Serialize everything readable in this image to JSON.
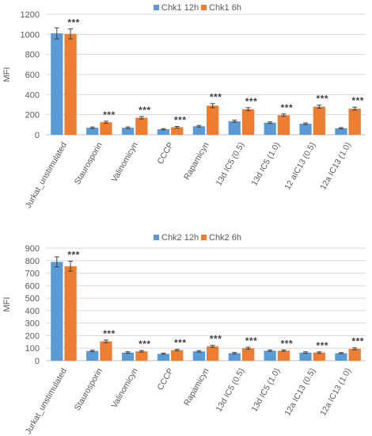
{
  "colors": {
    "series_12h": "#5b9bd5",
    "series_6h": "#ed7d31",
    "grid": "#d9d9d9",
    "axis": "#bfbfbf",
    "text": "#595959",
    "error_bar": "#404040"
  },
  "chart_data": [
    {
      "type": "bar",
      "title": "",
      "xlabel": "",
      "ylabel": "MFI",
      "ylim": [
        0,
        1200
      ],
      "yticks": [
        "0",
        "200",
        "400",
        "600",
        "800",
        "1000",
        "1200"
      ],
      "grid": true,
      "legend_position": "top",
      "categories": [
        "Jurkat_unstimulated",
        "Staurosporin",
        "Valinomicyn",
        "CCCP",
        "Rapamicyn",
        "13d IC5  (0.5)",
        "13d IC5 (1.0)",
        "12 aIC13 (0.5)",
        "12a IC13 (1.0)"
      ],
      "series": [
        {
          "name": "Chk1 12h",
          "values": [
            1010,
            70,
            70,
            55,
            85,
            135,
            120,
            110,
            65
          ],
          "errors": [
            55,
            8,
            8,
            6,
            8,
            10,
            8,
            8,
            6
          ]
        },
        {
          "name": "Chk1 6h",
          "values": [
            1005,
            125,
            170,
            75,
            290,
            255,
            195,
            280,
            260
          ],
          "errors": [
            50,
            10,
            12,
            8,
            20,
            15,
            12,
            15,
            15
          ]
        }
      ],
      "annotations": [
        "***",
        "***",
        "***",
        "***",
        "***",
        "***",
        "***",
        "***",
        "***"
      ]
    },
    {
      "type": "bar",
      "title": "",
      "xlabel": "",
      "ylabel": "MFI",
      "ylim": [
        0,
        900
      ],
      "yticks": [
        "0",
        "100",
        "200",
        "300",
        "400",
        "500",
        "600",
        "700",
        "800",
        "900"
      ],
      "grid": true,
      "legend_position": "top",
      "categories": [
        "Jurkat_unstimulated",
        "Staurosporin",
        "Valinomicyn",
        "CCCP",
        "Rapamicyn",
        "13d IC5 (0.5)",
        "13d IC5 (1.0)",
        "12a IC13 (0.5)",
        "12a IC13 (1.0)"
      ],
      "series": [
        {
          "name": "Chk2 12h",
          "values": [
            790,
            78,
            65,
            55,
            75,
            60,
            80,
            65,
            60
          ],
          "errors": [
            40,
            6,
            6,
            5,
            6,
            6,
            6,
            6,
            5
          ]
        },
        {
          "name": "Chk2 6h",
          "values": [
            755,
            155,
            75,
            85,
            115,
            100,
            80,
            65,
            95
          ],
          "errors": [
            40,
            10,
            6,
            6,
            8,
            8,
            6,
            6,
            8
          ]
        }
      ],
      "annotations": [
        "***",
        "***",
        "***",
        "***",
        "***",
        "***",
        "***",
        "***",
        "***"
      ]
    }
  ]
}
